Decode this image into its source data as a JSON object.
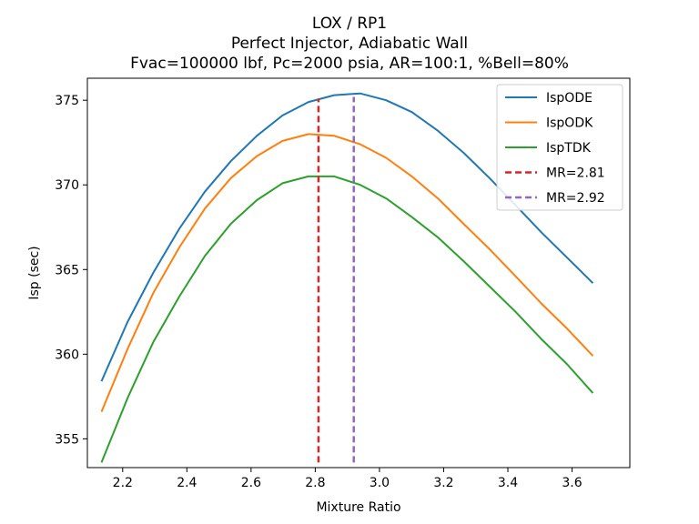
{
  "chart_data": {
    "type": "line",
    "title_lines": [
      "LOX / RP1",
      "Perfect Injector, Adiabatic Wall",
      "Fvac=100000 lbf, Pc=2000 psia, AR=100:1, %Bell=80%"
    ],
    "xlabel": "Mixture Ratio",
    "ylabel": "Isp (sec)",
    "xlim": [
      2.09,
      3.78
    ],
    "ylim": [
      353.3,
      376.3
    ],
    "xticks": [
      2.2,
      2.4,
      2.6,
      2.8,
      3.0,
      3.2,
      3.4,
      3.6
    ],
    "xtick_labels": [
      "2.2",
      "2.4",
      "2.6",
      "2.8",
      "3.0",
      "3.2",
      "3.4",
      "3.6"
    ],
    "yticks": [
      355,
      360,
      365,
      370,
      375
    ],
    "ytick_labels": [
      "355",
      "360",
      "365",
      "370",
      "375"
    ],
    "grid": false,
    "legend_position": "top-right",
    "x": [
      2.134,
      2.215,
      2.295,
      2.376,
      2.456,
      2.537,
      2.618,
      2.698,
      2.779,
      2.859,
      2.94,
      3.021,
      3.101,
      3.182,
      3.262,
      3.343,
      3.424,
      3.504,
      3.585,
      3.665
    ],
    "series": [
      {
        "name": "IspODE",
        "color": "#1f77b4",
        "values": [
          358.4,
          361.9,
          364.8,
          367.4,
          369.6,
          371.4,
          372.9,
          374.1,
          374.9,
          375.3,
          375.4,
          375.0,
          374.3,
          373.2,
          371.9,
          370.4,
          368.8,
          367.2,
          365.7,
          364.2
        ]
      },
      {
        "name": "IspODK",
        "color": "#ff7f0e",
        "values": [
          356.6,
          360.3,
          363.6,
          366.3,
          368.6,
          370.4,
          371.7,
          372.6,
          373.0,
          372.9,
          372.4,
          371.6,
          370.5,
          369.2,
          367.7,
          366.2,
          364.6,
          363.0,
          361.5,
          359.9
        ]
      },
      {
        "name": "IspTDK",
        "color": "#2ca02c",
        "values": [
          353.6,
          357.4,
          360.7,
          363.4,
          365.8,
          367.7,
          369.1,
          370.1,
          370.5,
          370.5,
          370.0,
          369.2,
          368.1,
          366.9,
          365.5,
          364.0,
          362.5,
          360.9,
          359.4,
          357.7
        ]
      }
    ],
    "vlines": [
      {
        "name": "MR=2.81",
        "x": 2.81,
        "y_range": [
          353.6,
          375.1
        ],
        "color": "#d62728",
        "style": "dashed"
      },
      {
        "name": "MR=2.92",
        "x": 2.92,
        "y_range": [
          353.6,
          375.2
        ],
        "color": "#9467bd",
        "style": "dashed"
      }
    ]
  }
}
